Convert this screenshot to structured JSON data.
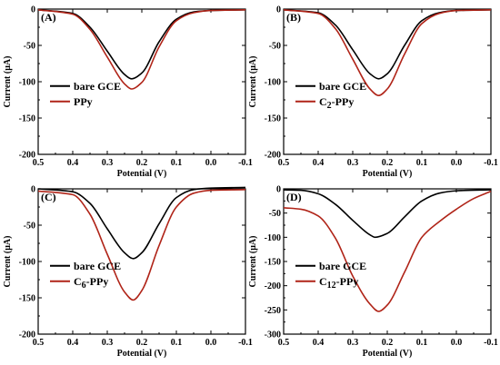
{
  "figure": {
    "ylabel": "Current (μA)",
    "xlabel": "Potential (V)"
  },
  "chart_data": [
    {
      "type": "line",
      "panel_label": "(A)",
      "xlabel": "Potential (V)",
      "ylabel": "Current (μA)",
      "xlim": [
        0.5,
        -0.1
      ],
      "ylim": [
        -200,
        0
      ],
      "x_reversed": true,
      "xticks": [
        "0.5",
        "0.4",
        "0.3",
        "0.2",
        "0.1",
        "0.0",
        "-0.1"
      ],
      "yticks": [
        "0",
        "-50",
        "-100",
        "-150",
        "-200"
      ],
      "legend": "lower-left",
      "series": [
        {
          "name": "bare GCE",
          "color": "#000000",
          "peak_x": 0.23,
          "peak_y": -96,
          "start_y": -1,
          "end_y": -1,
          "points": [
            [
              0.5,
              -1
            ],
            [
              0.4,
              -6
            ],
            [
              0.35,
              -25
            ],
            [
              0.3,
              -58
            ],
            [
              0.25,
              -90
            ],
            [
              0.23,
              -96
            ],
            [
              0.2,
              -88
            ],
            [
              0.15,
              -45
            ],
            [
              0.1,
              -14
            ],
            [
              0.05,
              -4
            ],
            [
              0.0,
              -2
            ],
            [
              -0.1,
              -1
            ]
          ]
        },
        {
          "name": "PPy",
          "color": "#b02418",
          "peak_x": 0.23,
          "peak_y": -110,
          "start_y": -1,
          "end_y": -1,
          "points": [
            [
              0.5,
              -1
            ],
            [
              0.4,
              -7
            ],
            [
              0.35,
              -28
            ],
            [
              0.3,
              -66
            ],
            [
              0.25,
              -103
            ],
            [
              0.23,
              -110
            ],
            [
              0.2,
              -101
            ],
            [
              0.15,
              -52
            ],
            [
              0.1,
              -16
            ],
            [
              0.05,
              -5
            ],
            [
              0.0,
              -2
            ],
            [
              -0.1,
              -1
            ]
          ]
        }
      ]
    },
    {
      "type": "line",
      "panel_label": "(B)",
      "xlabel": "Potential (V)",
      "ylabel": "Current (μA)",
      "xlim": [
        0.5,
        -0.1
      ],
      "ylim": [
        -200,
        0
      ],
      "x_reversed": true,
      "xticks": [
        "0.5",
        "0.4",
        "0.3",
        "0.2",
        "0.1",
        "0.0",
        "-0.1"
      ],
      "yticks": [
        "0",
        "-50",
        "-100",
        "-150",
        "-200"
      ],
      "legend": "lower-left",
      "series": [
        {
          "name": "bare GCE",
          "color": "#000000",
          "peak_x": 0.225,
          "peak_y": -96,
          "start_y": -1,
          "end_y": -1,
          "points": [
            [
              0.5,
              -1
            ],
            [
              0.4,
              -5
            ],
            [
              0.35,
              -22
            ],
            [
              0.3,
              -56
            ],
            [
              0.25,
              -89
            ],
            [
              0.225,
              -96
            ],
            [
              0.2,
              -89
            ],
            [
              0.15,
              -50
            ],
            [
              0.1,
              -16
            ],
            [
              0.05,
              -5
            ],
            [
              0.0,
              -2
            ],
            [
              -0.1,
              -1
            ]
          ]
        },
        {
          "name": "C2-PPy",
          "color": "#b02418",
          "peak_x": 0.225,
          "peak_y": -119,
          "start_y": -1,
          "end_y": -1,
          "points": [
            [
              0.5,
              -1
            ],
            [
              0.4,
              -6
            ],
            [
              0.35,
              -27
            ],
            [
              0.3,
              -69
            ],
            [
              0.25,
              -110
            ],
            [
              0.225,
              -119
            ],
            [
              0.2,
              -110
            ],
            [
              0.15,
              -62
            ],
            [
              0.1,
              -20
            ],
            [
              0.05,
              -6
            ],
            [
              0.0,
              -2
            ],
            [
              -0.1,
              -1
            ]
          ]
        }
      ]
    },
    {
      "type": "line",
      "panel_label": "(C)",
      "xlabel": "Potential (V)",
      "ylabel": "Current (μA)",
      "xlim": [
        0.5,
        -0.1
      ],
      "ylim": [
        -200,
        0
      ],
      "x_reversed": true,
      "xticks": [
        "0.5",
        "0.4",
        "0.3",
        "0.2",
        "0.1",
        "0.0",
        "-0.1"
      ],
      "yticks": [
        "0",
        "-50",
        "-100",
        "-150",
        "-200"
      ],
      "legend": "lower-left",
      "series": [
        {
          "name": "bare GCE",
          "color": "#000000",
          "peak_x": 0.225,
          "peak_y": -96,
          "start_y": 0,
          "end_y": 2,
          "points": [
            [
              0.5,
              0
            ],
            [
              0.4,
              -4
            ],
            [
              0.35,
              -20
            ],
            [
              0.3,
              -55
            ],
            [
              0.25,
              -88
            ],
            [
              0.225,
              -96
            ],
            [
              0.2,
              -88
            ],
            [
              0.15,
              -48
            ],
            [
              0.1,
              -12
            ],
            [
              0.05,
              -1
            ],
            [
              0.0,
              1
            ],
            [
              -0.1,
              2
            ]
          ]
        },
        {
          "name": "C6-PPy",
          "color": "#b02418",
          "peak_x": 0.225,
          "peak_y": -153,
          "start_y": -3,
          "end_y": -1,
          "points": [
            [
              0.5,
              -3
            ],
            [
              0.4,
              -8
            ],
            [
              0.35,
              -35
            ],
            [
              0.3,
              -90
            ],
            [
              0.25,
              -142
            ],
            [
              0.225,
              -153
            ],
            [
              0.2,
              -140
            ],
            [
              0.15,
              -78
            ],
            [
              0.1,
              -25
            ],
            [
              0.05,
              -6
            ],
            [
              0.0,
              -2
            ],
            [
              -0.1,
              -1
            ]
          ]
        }
      ]
    },
    {
      "type": "line",
      "panel_label": "(D)",
      "xlabel": "Potential (V)",
      "ylabel": "Current (μA)",
      "xlim": [
        0.5,
        -0.1
      ],
      "ylim": [
        -300,
        0
      ],
      "x_reversed": true,
      "xticks": [
        "0.5",
        "0.4",
        "0.3",
        "0.2",
        "0.1",
        "0.0",
        "-0.1"
      ],
      "yticks": [
        "0",
        "-50",
        "-100",
        "-150",
        "-200",
        "-250",
        "-300"
      ],
      "legend": "lower-left",
      "series": [
        {
          "name": "bare GCE",
          "color": "#000000",
          "peak_x": 0.235,
          "peak_y": -100,
          "start_y": -2,
          "end_y": -2,
          "points": [
            [
              0.5,
              -2
            ],
            [
              0.45,
              -3
            ],
            [
              0.4,
              -10
            ],
            [
              0.35,
              -32
            ],
            [
              0.3,
              -65
            ],
            [
              0.25,
              -95
            ],
            [
              0.235,
              -100
            ],
            [
              0.2,
              -92
            ],
            [
              0.15,
              -58
            ],
            [
              0.1,
              -25
            ],
            [
              0.05,
              -9
            ],
            [
              0.0,
              -4
            ],
            [
              -0.1,
              -2
            ]
          ]
        },
        {
          "name": "C12-PPy",
          "color": "#b02418",
          "peak_x": 0.225,
          "peak_y": -253,
          "start_y": -39,
          "end_y": -5,
          "points": [
            [
              0.5,
              -39
            ],
            [
              0.45,
              -42
            ],
            [
              0.4,
              -56
            ],
            [
              0.35,
              -102
            ],
            [
              0.3,
              -180
            ],
            [
              0.25,
              -238
            ],
            [
              0.225,
              -253
            ],
            [
              0.2,
              -240
            ],
            [
              0.15,
              -172
            ],
            [
              0.1,
              -100
            ],
            [
              0.05,
              -68
            ],
            [
              0.0,
              -42
            ],
            [
              -0.05,
              -20
            ],
            [
              -0.1,
              -5
            ]
          ]
        }
      ]
    }
  ]
}
